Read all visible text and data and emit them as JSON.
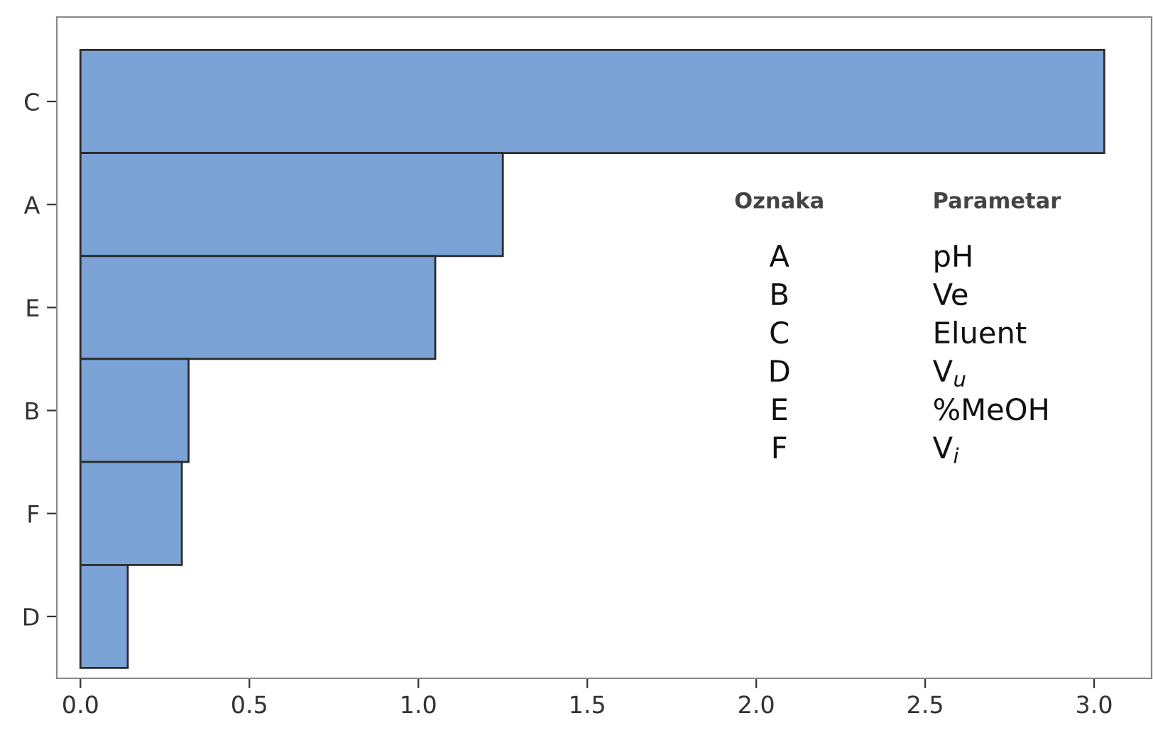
{
  "chart_data": {
    "type": "bar",
    "orientation": "horizontal",
    "categories": [
      "C",
      "A",
      "E",
      "B",
      "F",
      "D"
    ],
    "values": [
      3.03,
      1.25,
      1.05,
      0.32,
      0.3,
      0.14
    ],
    "color": "#7ba3d6",
    "xlim": [
      -0.07,
      3.17
    ],
    "xticks": [
      {
        "value": 0,
        "label": "0.0"
      },
      {
        "value": 0.5,
        "label": "0.5"
      },
      {
        "value": 1,
        "label": "1.0"
      },
      {
        "value": 1.5,
        "label": "1.5"
      },
      {
        "value": 2,
        "label": "2.0"
      },
      {
        "value": 2.5,
        "label": "2.5"
      },
      {
        "value": 3,
        "label": "3.0"
      }
    ],
    "grid": false,
    "annotations": [
      "Oznaka",
      "Parametar",
      "A",
      "pH",
      "B",
      "Ve",
      "C",
      "Eluent",
      "D",
      "V$_{u}$",
      "E",
      "%MeOH",
      "F",
      "V$_{i}$"
    ]
  }
}
